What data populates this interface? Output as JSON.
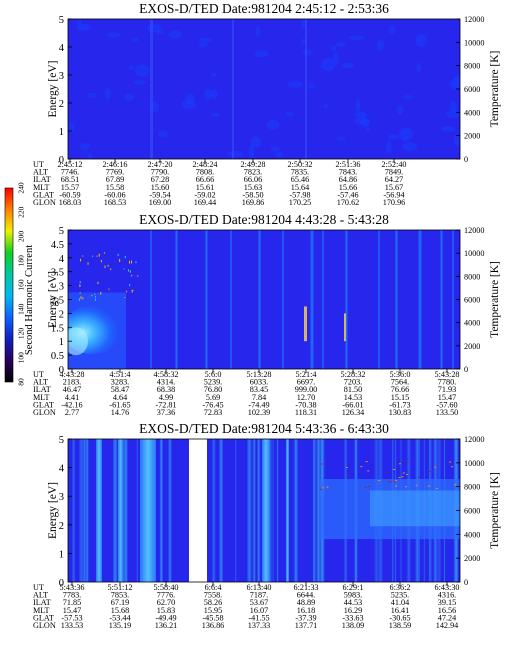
{
  "chart_data": {
    "type": "heatmap",
    "colorbar": {
      "label": "Second Harmonic Current",
      "ticks": [
        "80",
        "100",
        "120",
        "140",
        "160",
        "180",
        "200",
        "220",
        "240"
      ],
      "range": [
        80,
        240
      ],
      "colors": [
        "#000000",
        "#2a0060",
        "#1020c0",
        "#1060ff",
        "#00b8f0",
        "#00c8a0",
        "#10d020",
        "#f0f000",
        "#ff8000",
        "#ff0000"
      ]
    },
    "panels": [
      {
        "title": "EXOS-D/TED   Date:981204  2:45:12 - 2:53:36",
        "ylabel_left": "Energy [eV]",
        "ylabel_right": "Temperature [K]",
        "ylim_left": [
          0,
          5
        ],
        "ylim_right": [
          0,
          12000
        ],
        "yticks_left": [
          "0",
          "1",
          "2",
          "3",
          "4",
          "5"
        ],
        "yticks_right": [
          "0",
          "2000",
          "4000",
          "6000",
          "8000",
          "10000",
          "12000"
        ],
        "orbit_rows": [
          {
            "label": "UT",
            "values": [
              "2:45:12",
              "2:46:16",
              "2:47:20",
              "2:48:24",
              "2:49:28",
              "2:50:32",
              "2:51:36",
              "2:52:40"
            ]
          },
          {
            "label": "ALT",
            "values": [
              "7746.",
              "7769.",
              "7790.",
              "7808.",
              "7823.",
              "7835.",
              "7843.",
              "7849."
            ]
          },
          {
            "label": "ILAT",
            "values": [
              "68.51",
              "67.89",
              "67.28",
              "66.66",
              "66.06",
              "65.46",
              "64.86",
              "64.27"
            ]
          },
          {
            "label": "MLT",
            "values": [
              "15.57",
              "15.58",
              "15.60",
              "15.61",
              "15.63",
              "15.64",
              "15.66",
              "15.67"
            ]
          },
          {
            "label": "GLAT",
            "values": [
              "-60.59",
              "-60.06",
              "-59.54",
              "-59.02",
              "-58.50",
              "-57.98",
              "-57.46",
              "-56.94"
            ]
          },
          {
            "label": "GLON",
            "values": [
              "168.03",
              "168.53",
              "169.00",
              "169.44",
              "169.86",
              "170.25",
              "170.62",
              "170.96"
            ]
          }
        ]
      },
      {
        "title": "EXOS-D/TED   Date:981204  4:43:28 - 5:43:28",
        "ylabel_left": "Energy [eV]",
        "ylabel_right": "Temperature [K]",
        "ylim_left": [
          0,
          5
        ],
        "ylim_right": [
          0,
          12000
        ],
        "yticks_left": [
          "0",
          "0.5",
          "1",
          "1.5",
          "2",
          "2.5",
          "3",
          "3.5",
          "4",
          "4.5",
          "5"
        ],
        "yticks_right": [
          "0",
          "2000",
          "4000",
          "6000",
          "8000",
          "10000",
          "12000"
        ],
        "orbit_rows": [
          {
            "label": "UT",
            "values": [
              "4:43:28",
              "4:51:4",
              "4:58:32",
              "5:6:0",
              "5:13:28",
              "5:21:4",
              "5:28:32",
              "5:36:0",
              "5:43:28"
            ]
          },
          {
            "label": "ALT",
            "values": [
              "2183.",
              "3283.",
              "4314.",
              "5239.",
              "6033.",
              "6697.",
              "7203.",
              "7564.",
              "7780."
            ]
          },
          {
            "label": "ILAT",
            "values": [
              "46.47",
              "58.47",
              "68.38",
              "76.80",
              "83.45",
              "999.00",
              "81.50",
              "76.66",
              "71.93"
            ]
          },
          {
            "label": "MLT",
            "values": [
              "4.41",
              "4.64",
              "4.99",
              "5.69",
              "7.84",
              "12.70",
              "14.53",
              "15.15",
              "15.47"
            ]
          },
          {
            "label": "GLAT",
            "values": [
              "-42.16",
              "-61.65",
              "-72.81",
              "-76.45",
              "-74.49",
              "-70.38",
              "-66.01",
              "-61.73",
              "-57.60"
            ]
          },
          {
            "label": "GLON",
            "values": [
              "2.77",
              "14.76",
              "37.36",
              "72.83",
              "102.39",
              "118.31",
              "126.34",
              "130.83",
              "133.50"
            ]
          }
        ]
      },
      {
        "title": "EXOS-D/TED   Date:981204  5:43:36 - 6:43:30",
        "ylabel_left": "Energy [eV]",
        "ylabel_right": "Temperature [K]",
        "ylim_left": [
          0,
          5
        ],
        "ylim_right": [
          0,
          12000
        ],
        "yticks_left": [
          "0",
          "1",
          "2",
          "3",
          "4",
          "5"
        ],
        "yticks_right": [
          "0",
          "2000",
          "4000",
          "6000",
          "8000",
          "10000",
          "12000"
        ],
        "orbit_rows": [
          {
            "label": "UT",
            "values": [
              "5:43:36",
              "5:51:12",
              "5:58:40",
              "6:6:4",
              "6:13:40",
              "6:21:33",
              "6:29:1",
              "6:36:2",
              "6:43:30"
            ]
          },
          {
            "label": "ALT",
            "values": [
              "7783.",
              "7853.",
              "7776.",
              "7558.",
              "7187.",
              "6644.",
              "5983.",
              "5235.",
              "4316."
            ]
          },
          {
            "label": "ILAT",
            "values": [
              "71.85",
              "67.19",
              "62.70",
              "58.26",
              "53.67",
              "48.89",
              "44.53",
              "41.04",
              "39.15"
            ]
          },
          {
            "label": "MLT",
            "values": [
              "15.47",
              "15.68",
              "15.83",
              "15.95",
              "16.07",
              "16.18",
              "16.29",
              "16.41",
              "16.56"
            ]
          },
          {
            "label": "GLAT",
            "values": [
              "-57.53",
              "-53.44",
              "-49.49",
              "-45.58",
              "-41.55",
              "-37.39",
              "-33.63",
              "-30.65",
              "47.24"
            ]
          },
          {
            "label": "GLON",
            "values": [
              "133.53",
              "135.19",
              "136.21",
              "136.86",
              "137.33",
              "137.71",
              "138.09",
              "138.59",
              "142.94"
            ]
          }
        ]
      }
    ]
  }
}
